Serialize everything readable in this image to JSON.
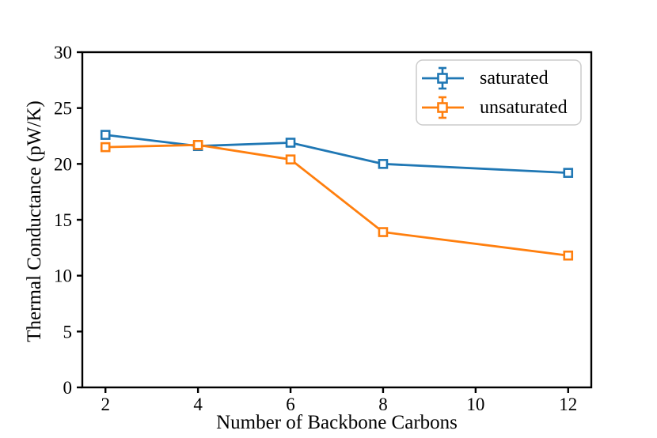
{
  "figure": {
    "background": "#ffffff",
    "frame_color": "#000000"
  },
  "chart_data": {
    "type": "line",
    "title": "",
    "xlabel": "Number of Backbone Carbons",
    "ylabel": "Thermal Conductance (pW/K)",
    "x": [
      2,
      4,
      6,
      8,
      12
    ],
    "series": [
      {
        "name": "saturated",
        "color": "#1f77b4",
        "values": [
          22.6,
          21.6,
          21.9,
          20.0,
          19.2
        ]
      },
      {
        "name": "unsaturated",
        "color": "#ff7f0e",
        "values": [
          21.5,
          21.7,
          20.4,
          13.9,
          11.8
        ]
      }
    ],
    "xticks": [
      2,
      4,
      6,
      8,
      10,
      12
    ],
    "yticks": [
      0,
      5,
      10,
      15,
      20,
      25,
      30
    ],
    "xlim": [
      1.5,
      12.5
    ],
    "ylim": [
      0,
      30
    ],
    "grid": false,
    "marker": "open-square",
    "error_bars_in_legend": true,
    "legend_position": "upper right",
    "legend_border_color": "#cccccc"
  }
}
